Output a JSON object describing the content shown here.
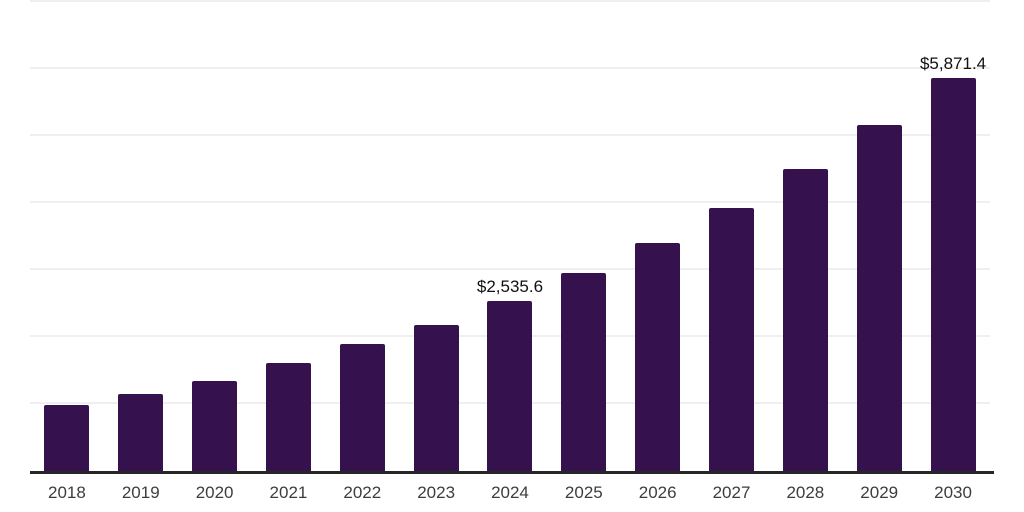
{
  "chart_data": {
    "type": "bar",
    "title": "",
    "xlabel": "",
    "ylabel": "",
    "categories": [
      "2018",
      "2019",
      "2020",
      "2021",
      "2022",
      "2023",
      "2024",
      "2025",
      "2026",
      "2027",
      "2028",
      "2029",
      "2030"
    ],
    "values": [
      990,
      1150,
      1340,
      1610,
      1900,
      2180,
      2535.6,
      2950,
      3400,
      3925,
      4510,
      5165,
      5871.4
    ],
    "value_labels": {
      "2024": "$2,535.6",
      "2030": "$5,871.4"
    },
    "ylim": [
      0,
      7000
    ],
    "gridline_interval": 1000,
    "grid": "horizontal gridlines only, no y-axis tick labels",
    "legend_position": "none",
    "colors": {
      "bar": "#35114E",
      "gridline": "#efefef",
      "axis_line": "#262626",
      "value_label": "#111111",
      "tick_label": "#3d3d3d",
      "background": "#ffffff"
    }
  }
}
